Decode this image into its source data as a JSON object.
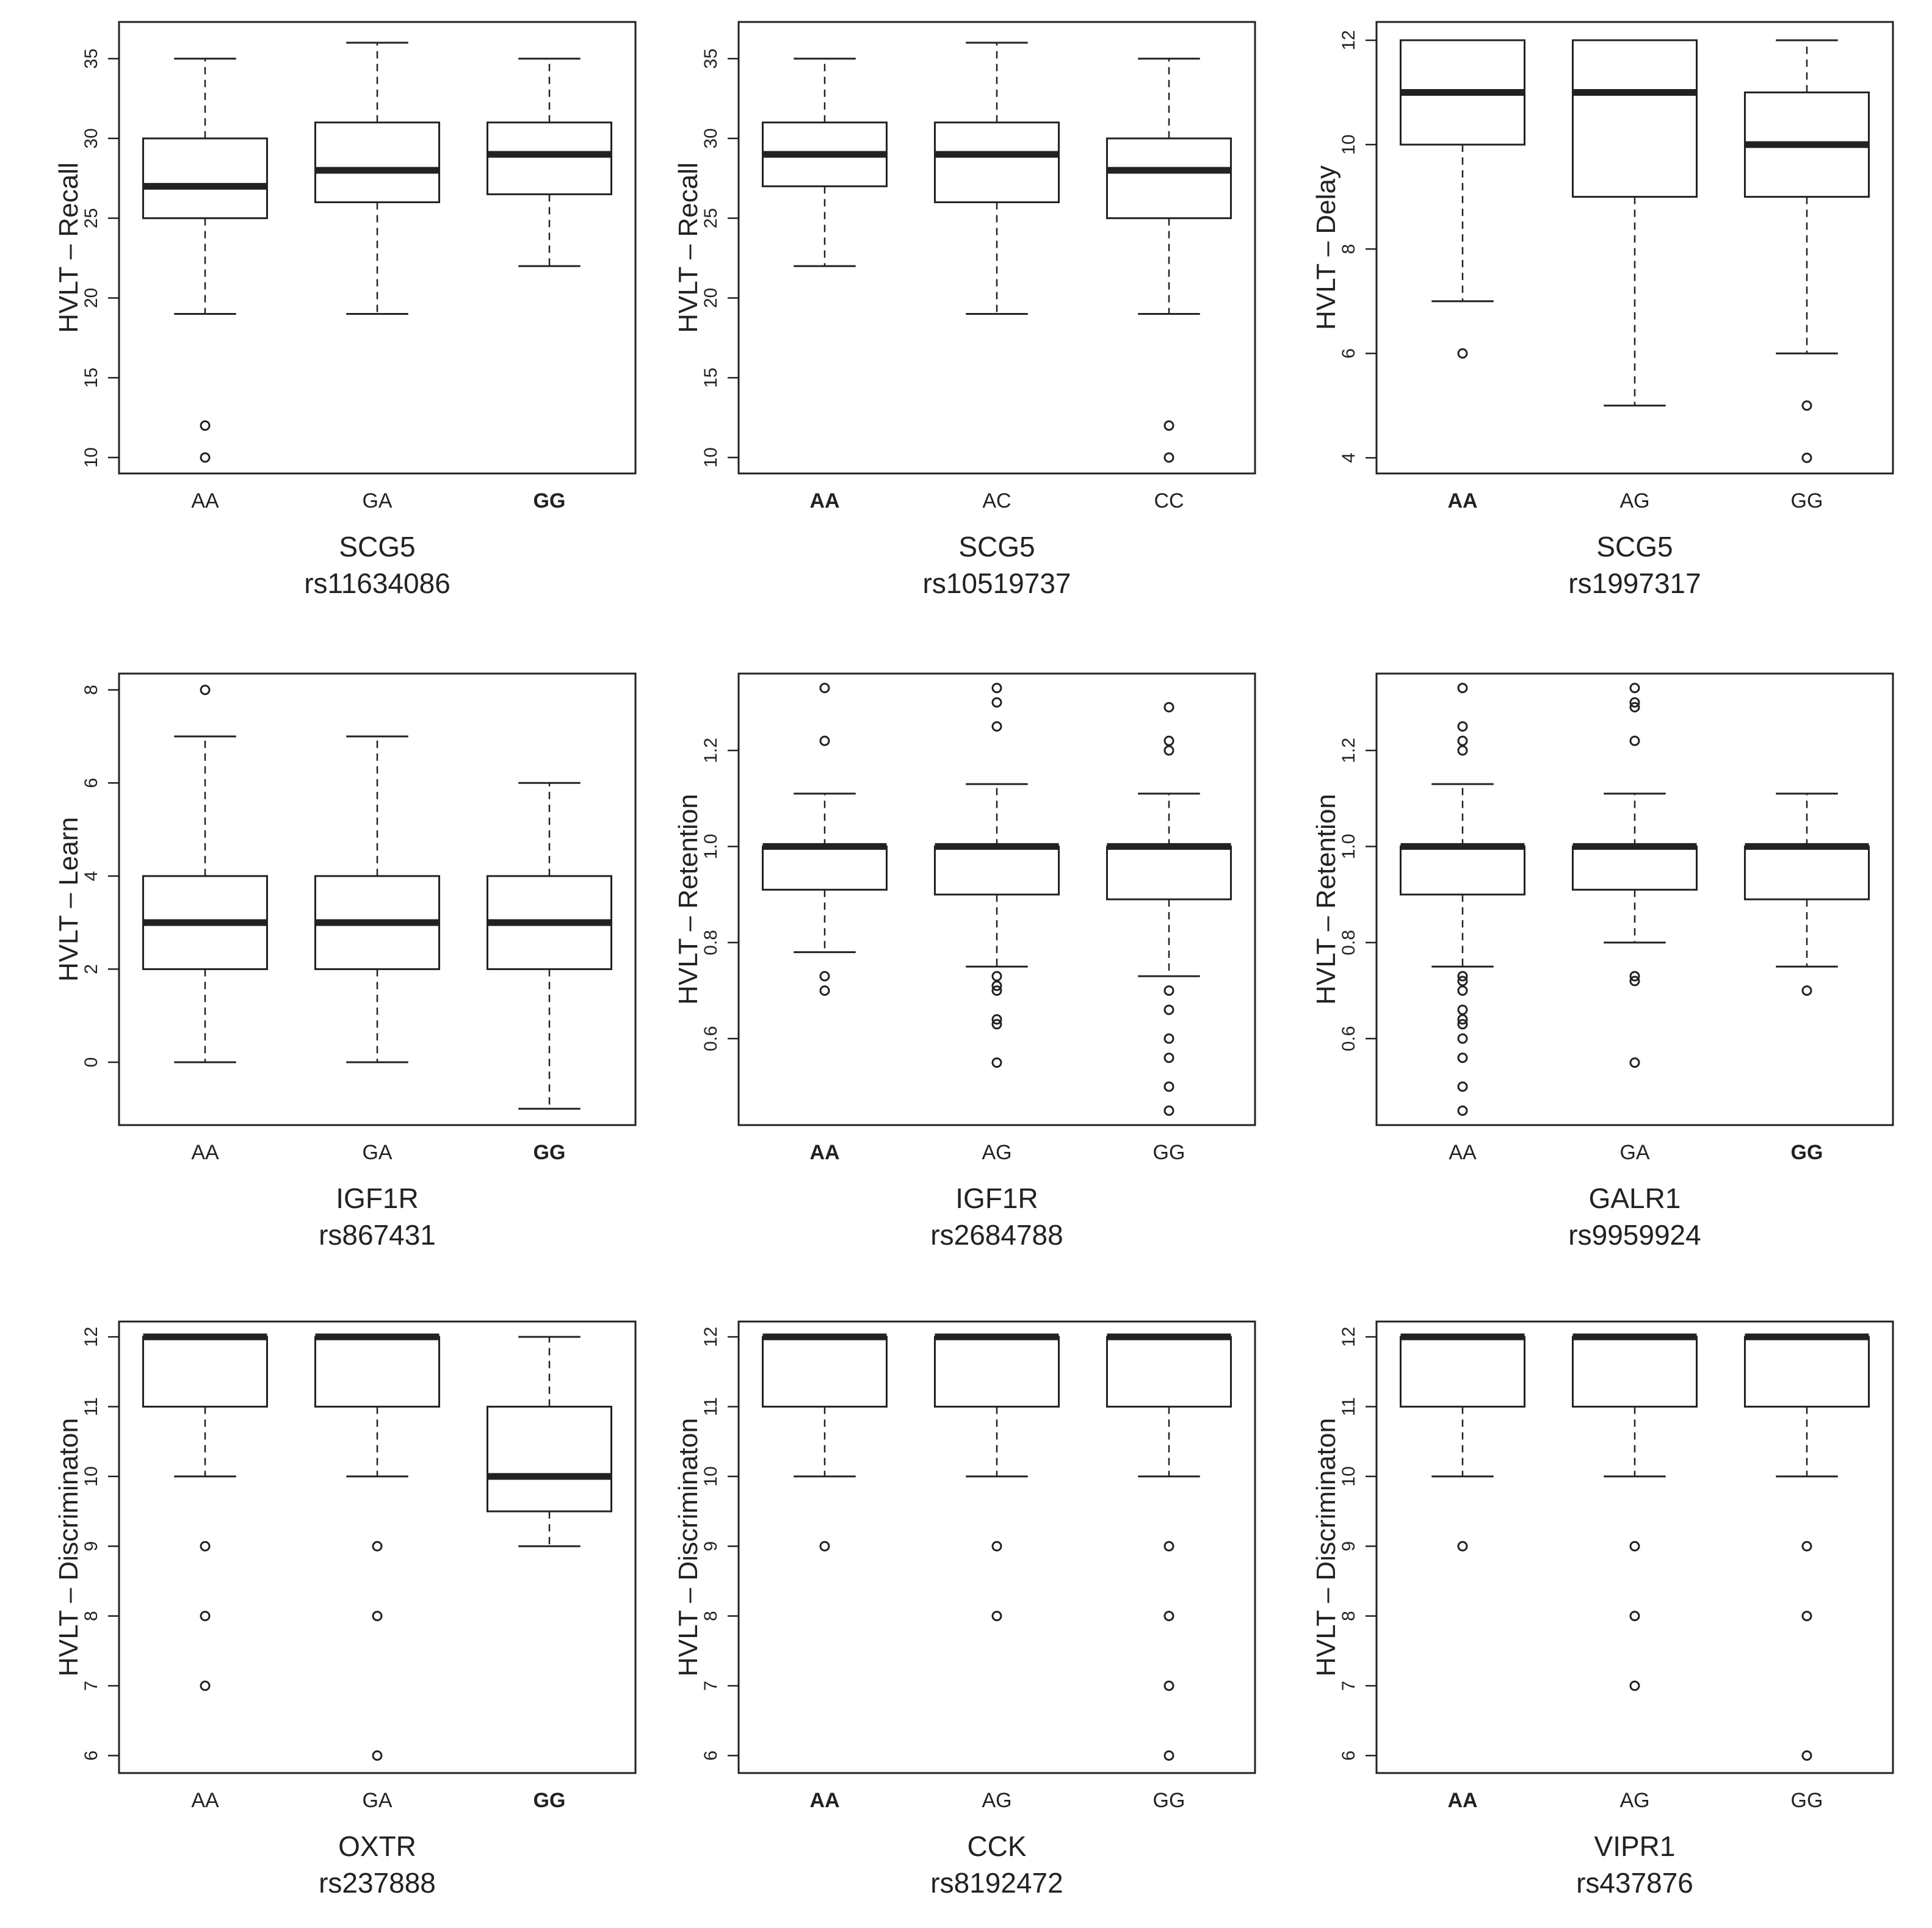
{
  "chart_data": [
    {
      "type": "box",
      "ylabel": "HVLT – Recall",
      "yticks": [
        10,
        15,
        20,
        25,
        30,
        35
      ],
      "ylim": [
        9,
        37.3
      ],
      "categories": [
        "AA",
        "GA",
        "GG"
      ],
      "bold": [
        false,
        false,
        true
      ],
      "gene": "SCG5",
      "snp": "rs11634086",
      "boxes": [
        {
          "min": 19,
          "q1": 25,
          "median": 27,
          "q3": 30,
          "max": 35,
          "outliers": [
            12,
            10
          ]
        },
        {
          "min": 19,
          "q1": 26,
          "median": 28,
          "q3": 31,
          "max": 36,
          "outliers": []
        },
        {
          "min": 22,
          "q1": 26.5,
          "median": 29,
          "q3": 31,
          "max": 35,
          "outliers": []
        }
      ]
    },
    {
      "type": "box",
      "ylabel": "HVLT – Recall",
      "yticks": [
        10,
        15,
        20,
        25,
        30,
        35
      ],
      "ylim": [
        9,
        37.3
      ],
      "categories": [
        "AA",
        "AC",
        "CC"
      ],
      "bold": [
        true,
        false,
        false
      ],
      "gene": "SCG5",
      "snp": "rs10519737",
      "boxes": [
        {
          "min": 22,
          "q1": 27,
          "median": 29,
          "q3": 31,
          "max": 35,
          "outliers": []
        },
        {
          "min": 19,
          "q1": 26,
          "median": 29,
          "q3": 31,
          "max": 36,
          "outliers": []
        },
        {
          "min": 19,
          "q1": 25,
          "median": 28,
          "q3": 30,
          "max": 35,
          "outliers": [
            12,
            10
          ]
        }
      ]
    },
    {
      "type": "box",
      "ylabel": "HVLT – Delay",
      "yticks": [
        4,
        6,
        8,
        10,
        12
      ],
      "ylim": [
        3.7,
        12.35
      ],
      "categories": [
        "AA",
        "AG",
        "GG"
      ],
      "bold": [
        true,
        false,
        false
      ],
      "gene": "SCG5",
      "snp": "rs1997317",
      "boxes": [
        {
          "min": 7,
          "q1": 10,
          "median": 11,
          "q3": 12,
          "max": 12,
          "outliers": [
            6
          ]
        },
        {
          "min": 5,
          "q1": 9,
          "median": 11,
          "q3": 12,
          "max": 12,
          "outliers": []
        },
        {
          "min": 6,
          "q1": 9,
          "median": 10,
          "q3": 11,
          "max": 12,
          "outliers": [
            5,
            4
          ]
        }
      ]
    },
    {
      "type": "box",
      "ylabel": "HVLT – Learn",
      "yticks": [
        0,
        2,
        4,
        6,
        8
      ],
      "ylim": [
        -1.35,
        8.35
      ],
      "categories": [
        "AA",
        "GA",
        "GG"
      ],
      "bold": [
        false,
        false,
        true
      ],
      "gene": "IGF1R",
      "snp": "rs867431",
      "boxes": [
        {
          "min": 0,
          "q1": 2,
          "median": 3,
          "q3": 4,
          "max": 7,
          "outliers": [
            8
          ]
        },
        {
          "min": 0,
          "q1": 2,
          "median": 3,
          "q3": 4,
          "max": 7,
          "outliers": []
        },
        {
          "min": -1,
          "q1": 2,
          "median": 3,
          "q3": 4,
          "max": 6,
          "outliers": []
        }
      ]
    },
    {
      "type": "box",
      "ylabel": "HVLT – Retention",
      "yticks": [
        0.6,
        0.8,
        1.0,
        1.2
      ],
      "ytick_labels": [
        "0.6",
        "0.8",
        "1.0",
        "1.2"
      ],
      "ylim": [
        0.42,
        1.36
      ],
      "categories": [
        "AA",
        "AG",
        "GG"
      ],
      "bold": [
        true,
        false,
        false
      ],
      "gene": "IGF1R",
      "snp": "rs2684788",
      "boxes": [
        {
          "min": 0.78,
          "q1": 0.91,
          "median": 1.0,
          "q3": 1.0,
          "max": 1.11,
          "outliers": [
            1.33,
            1.22,
            0.73,
            0.7
          ]
        },
        {
          "min": 0.75,
          "q1": 0.9,
          "median": 1.0,
          "q3": 1.0,
          "max": 1.13,
          "outliers": [
            1.33,
            1.3,
            1.25,
            0.73,
            0.71,
            0.7,
            0.64,
            0.63,
            0.55
          ]
        },
        {
          "min": 0.73,
          "q1": 0.89,
          "median": 1.0,
          "q3": 1.0,
          "max": 1.11,
          "outliers": [
            1.29,
            1.22,
            1.2,
            0.7,
            0.66,
            0.6,
            0.56,
            0.5,
            0.45
          ]
        }
      ]
    },
    {
      "type": "box",
      "ylabel": "HVLT – Retention",
      "yticks": [
        0.6,
        0.8,
        1.0,
        1.2
      ],
      "ytick_labels": [
        "0.6",
        "0.8",
        "1.0",
        "1.2"
      ],
      "ylim": [
        0.42,
        1.36
      ],
      "categories": [
        "AA",
        "GA",
        "GG"
      ],
      "bold": [
        false,
        false,
        true
      ],
      "gene": "GALR1",
      "snp": "rs9959924",
      "boxes": [
        {
          "min": 0.75,
          "q1": 0.9,
          "median": 1.0,
          "q3": 1.0,
          "max": 1.13,
          "outliers": [
            1.33,
            1.25,
            1.22,
            1.2,
            0.73,
            0.72,
            0.7,
            0.66,
            0.64,
            0.63,
            0.6,
            0.56,
            0.5,
            0.45
          ]
        },
        {
          "min": 0.8,
          "q1": 0.91,
          "median": 1.0,
          "q3": 1.0,
          "max": 1.11,
          "outliers": [
            1.33,
            1.3,
            1.29,
            1.22,
            0.73,
            0.72,
            0.55
          ]
        },
        {
          "min": 0.75,
          "q1": 0.89,
          "median": 1.0,
          "q3": 1.0,
          "max": 1.11,
          "outliers": [
            0.7
          ]
        }
      ]
    },
    {
      "type": "box",
      "ylabel": "HVLT – Discriminaton",
      "yticks": [
        6,
        7,
        8,
        9,
        10,
        11,
        12
      ],
      "ylim": [
        5.75,
        12.22
      ],
      "categories": [
        "AA",
        "GA",
        "GG"
      ],
      "bold": [
        false,
        false,
        true
      ],
      "gene": "OXTR",
      "snp": "rs237888",
      "boxes": [
        {
          "min": 10,
          "q1": 11,
          "median": 12,
          "q3": 12,
          "max": 12,
          "outliers": [
            9,
            8,
            7
          ]
        },
        {
          "min": 10,
          "q1": 11,
          "median": 12,
          "q3": 12,
          "max": 12,
          "outliers": [
            9,
            8,
            6
          ]
        },
        {
          "min": 9,
          "q1": 9.5,
          "median": 10,
          "q3": 11,
          "max": 12,
          "outliers": []
        }
      ]
    },
    {
      "type": "box",
      "ylabel": "HVLT – Discriminaton",
      "yticks": [
        6,
        7,
        8,
        9,
        10,
        11,
        12
      ],
      "ylim": [
        5.75,
        12.22
      ],
      "categories": [
        "AA",
        "AG",
        "GG"
      ],
      "bold": [
        true,
        false,
        false
      ],
      "gene": "CCK",
      "snp": "rs8192472",
      "boxes": [
        {
          "min": 10,
          "q1": 11,
          "median": 12,
          "q3": 12,
          "max": 12,
          "outliers": [
            9
          ]
        },
        {
          "min": 10,
          "q1": 11,
          "median": 12,
          "q3": 12,
          "max": 12,
          "outliers": [
            9,
            8
          ]
        },
        {
          "min": 10,
          "q1": 11,
          "median": 12,
          "q3": 12,
          "max": 12,
          "outliers": [
            9,
            8,
            7,
            6
          ]
        }
      ]
    },
    {
      "type": "box",
      "ylabel": "HVLT – Discriminaton",
      "yticks": [
        6,
        7,
        8,
        9,
        10,
        11,
        12
      ],
      "ylim": [
        5.75,
        12.22
      ],
      "categories": [
        "AA",
        "AG",
        "GG"
      ],
      "bold": [
        true,
        false,
        false
      ],
      "gene": "VIPR1",
      "snp": "rs437876",
      "boxes": [
        {
          "min": 10,
          "q1": 11,
          "median": 12,
          "q3": 12,
          "max": 12,
          "outliers": [
            9
          ]
        },
        {
          "min": 10,
          "q1": 11,
          "median": 12,
          "q3": 12,
          "max": 12,
          "outliers": [
            9,
            8,
            7
          ]
        },
        {
          "min": 10,
          "q1": 11,
          "median": 12,
          "q3": 12,
          "max": 12,
          "outliers": [
            9,
            8,
            6
          ]
        }
      ]
    }
  ]
}
